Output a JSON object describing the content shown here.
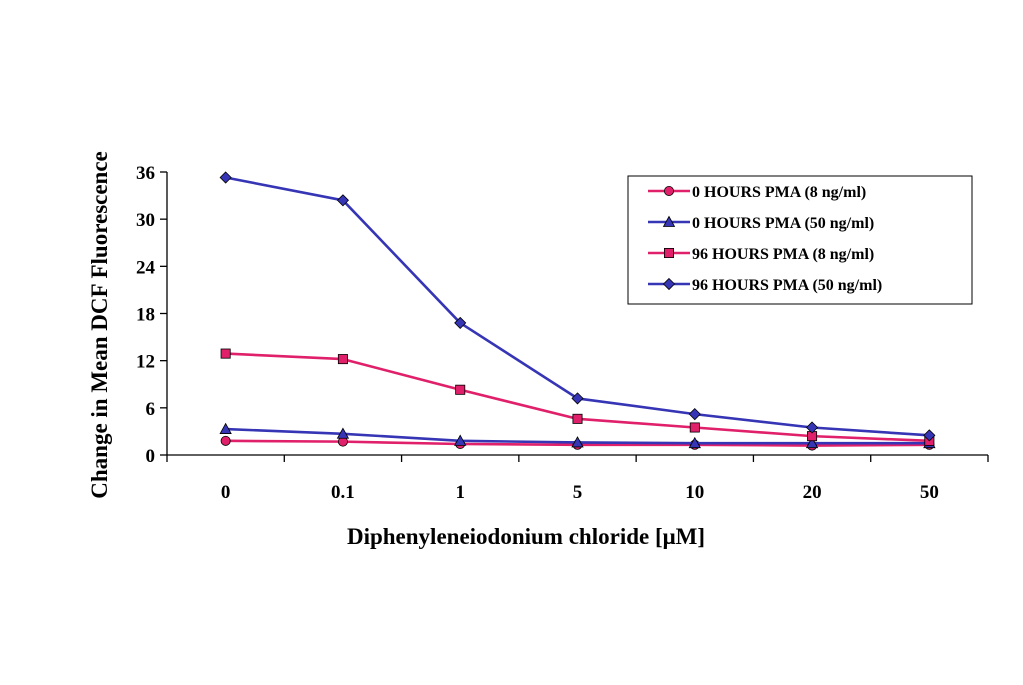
{
  "chart_data": {
    "type": "line",
    "categories": [
      "0",
      "0.1",
      "1",
      "5",
      "10",
      "20",
      "50"
    ],
    "xlabel": "Diphenyleneiodonium chloride [μM]",
    "ylabel": "Change in Mean DCF Fluorescence",
    "ylim": [
      0,
      36
    ],
    "yticks": [
      "0",
      "6",
      "12",
      "18",
      "24",
      "30",
      "36"
    ],
    "grid": false,
    "legend_position": "top-right",
    "series": [
      {
        "name": "0 HOURS PMA (8 ng/ml)",
        "color": "#e0206a",
        "marker": "circle",
        "values": [
          1.8,
          1.7,
          1.4,
          1.3,
          1.3,
          1.2,
          1.3
        ]
      },
      {
        "name": "0 HOURS PMA (50 ng/ml)",
        "color": "#3535b5",
        "marker": "triangle",
        "values": [
          3.3,
          2.7,
          1.8,
          1.6,
          1.5,
          1.5,
          1.5
        ]
      },
      {
        "name": "96 HOURS PMA (8 ng/ml)",
        "color": "#e0206a",
        "marker": "square",
        "values": [
          12.9,
          12.2,
          8.3,
          4.6,
          3.5,
          2.4,
          1.8
        ]
      },
      {
        "name": "96 HOURS PMA (50 ng/ml)",
        "color": "#3535b5",
        "marker": "diamond",
        "values": [
          35.3,
          32.4,
          16.8,
          7.2,
          5.2,
          3.5,
          2.5
        ]
      }
    ]
  }
}
